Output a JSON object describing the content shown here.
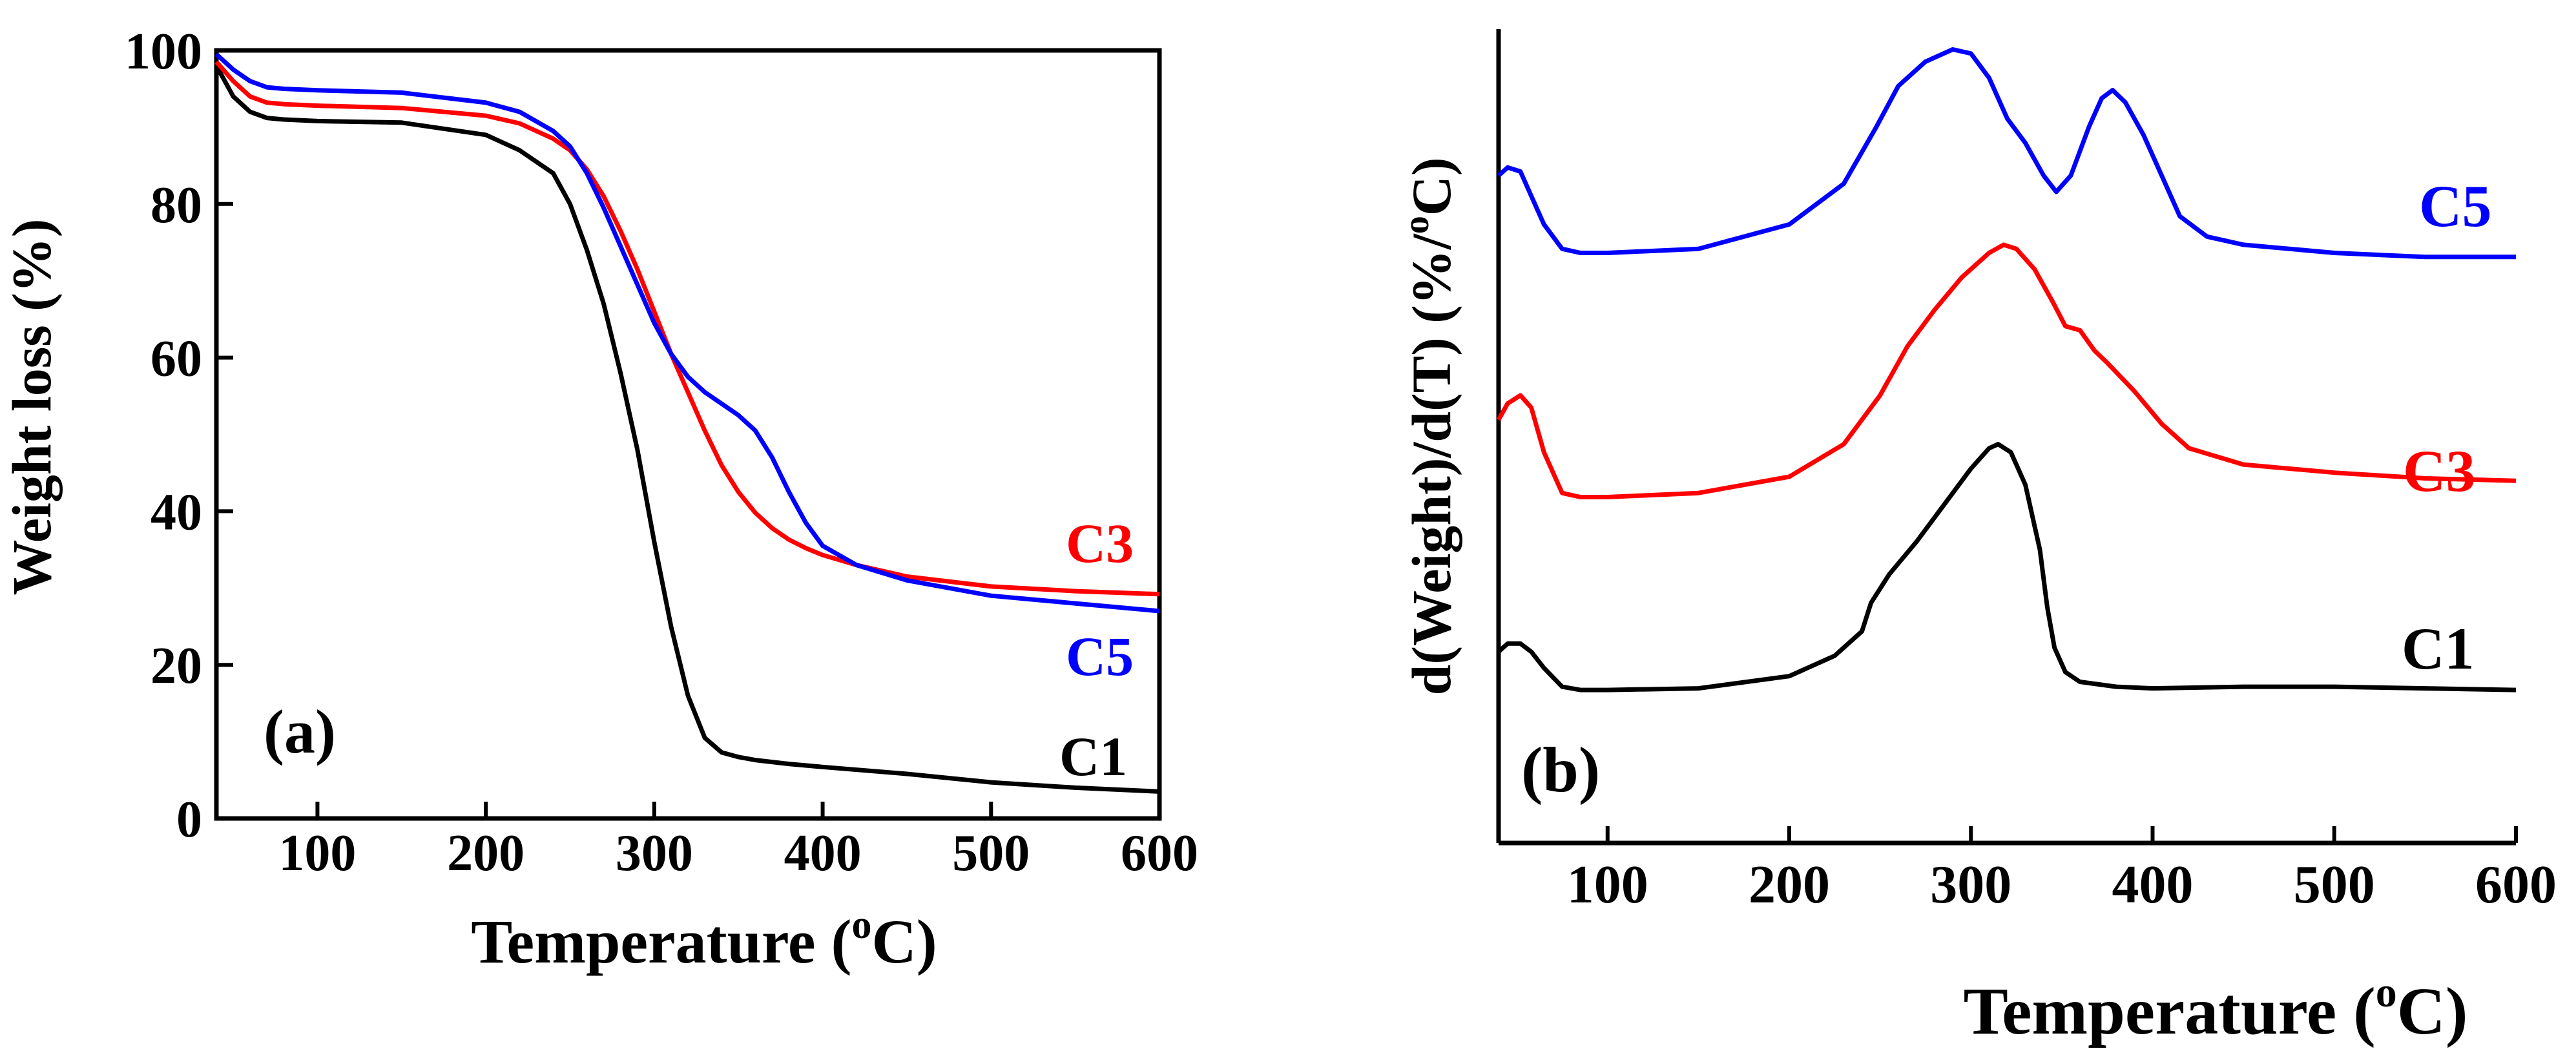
{
  "colors": {
    "C1": "#000000",
    "C3": "#ff0000",
    "C5": "#0000ff",
    "axis": "#000000"
  },
  "chart_data": [
    {
      "panel": "a",
      "type": "line",
      "title": "",
      "panel_label": "(a)",
      "xlabel_main": "Temperature (",
      "xlabel_sup": "o",
      "xlabel_tail": "C)",
      "ylabel": "Weight loss (%)",
      "xlim": [
        40,
        600
      ],
      "ylim": [
        0,
        100
      ],
      "xticks": [
        100,
        200,
        300,
        400,
        500,
        600
      ],
      "yticks": [
        0,
        20,
        40,
        60,
        80,
        100
      ],
      "xtick_labels": [
        "100",
        "200",
        "300",
        "400",
        "500",
        "600"
      ],
      "ytick_labels": [
        "0",
        "20",
        "40",
        "60",
        "80",
        "100"
      ],
      "series": [
        {
          "name": "C1",
          "label": "C1",
          "color": "#000000",
          "x": [
            40,
            50,
            60,
            70,
            80,
            100,
            150,
            200,
            220,
            240,
            250,
            260,
            270,
            280,
            290,
            300,
            310,
            320,
            330,
            340,
            350,
            360,
            380,
            400,
            450,
            500,
            550,
            600
          ],
          "y": [
            98,
            94,
            92,
            91.2,
            91,
            90.8,
            90.6,
            89,
            87,
            84,
            80,
            74,
            67,
            58,
            48,
            36,
            25,
            16,
            10.5,
            8.6,
            8,
            7.6,
            7.1,
            6.7,
            5.8,
            4.7,
            4,
            3.5
          ]
        },
        {
          "name": "C3",
          "label": "C3",
          "color": "#ff0000",
          "x": [
            40,
            50,
            60,
            70,
            80,
            100,
            150,
            200,
            220,
            240,
            250,
            260,
            270,
            280,
            290,
            300,
            310,
            320,
            330,
            340,
            350,
            360,
            370,
            380,
            390,
            400,
            420,
            450,
            500,
            550,
            600
          ],
          "y": [
            98.5,
            96,
            94,
            93.2,
            93,
            92.8,
            92.5,
            91.5,
            90.5,
            88.5,
            87,
            84.5,
            81,
            76.5,
            71.5,
            66,
            60.5,
            55.5,
            50.5,
            46,
            42.5,
            39.8,
            37.8,
            36.3,
            35.2,
            34.3,
            33,
            31.5,
            30.2,
            29.6,
            29.2
          ]
        },
        {
          "name": "C5",
          "label": "C5",
          "color": "#0000ff",
          "x": [
            40,
            50,
            60,
            70,
            80,
            100,
            150,
            200,
            220,
            240,
            250,
            260,
            270,
            280,
            290,
            300,
            310,
            320,
            330,
            340,
            350,
            360,
            370,
            380,
            390,
            400,
            420,
            450,
            500,
            550,
            600
          ],
          "y": [
            99.5,
            97.5,
            96,
            95.2,
            95,
            94.8,
            94.5,
            93.2,
            92,
            89.5,
            87.5,
            84,
            79.5,
            74.5,
            69.5,
            64.5,
            60.5,
            57.5,
            55.5,
            54,
            52.5,
            50.5,
            47,
            42.5,
            38.5,
            35.5,
            33,
            31,
            29,
            28,
            27
          ]
        }
      ]
    },
    {
      "panel": "b",
      "type": "line",
      "title": "",
      "panel_label": "(b)",
      "xlabel_main": "Temperature (",
      "xlabel_sup": "o",
      "xlabel_tail": "C)",
      "ylabel_main": "d(Weight)/d(T) (%/",
      "ylabel_sup": "o",
      "ylabel_tail": "C)",
      "xlim": [
        40,
        600
      ],
      "ylim": [
        0,
        100
      ],
      "xticks": [
        100,
        200,
        300,
        400,
        500,
        600
      ],
      "xtick_labels": [
        "100",
        "200",
        "300",
        "400",
        "500",
        "600"
      ],
      "yticks": [],
      "series": [
        {
          "name": "C1",
          "label": "C1",
          "color": "#000000",
          "x": [
            40,
            45,
            52,
            58,
            65,
            75,
            85,
            100,
            150,
            200,
            225,
            240,
            245,
            255,
            270,
            285,
            300,
            310,
            315,
            322,
            330,
            338,
            342,
            346,
            352,
            360,
            380,
            400,
            450,
            500,
            550,
            600
          ],
          "y": [
            23.5,
            24.5,
            24.5,
            23.5,
            21.5,
            19.2,
            18.8,
            18.8,
            19,
            20.5,
            23,
            26,
            29.5,
            33,
            37,
            41.5,
            46,
            48.5,
            49,
            48,
            44,
            36,
            29,
            24,
            21,
            19.8,
            19.2,
            19,
            19.2,
            19.2,
            19,
            18.8
          ]
        },
        {
          "name": "C3",
          "label": "C3",
          "color": "#ff0000",
          "x": [
            40,
            45,
            52,
            58,
            65,
            75,
            85,
            100,
            150,
            200,
            230,
            250,
            265,
            280,
            295,
            310,
            318,
            325,
            335,
            345,
            352,
            360,
            368,
            375,
            390,
            405,
            420,
            450,
            500,
            550,
            600
          ],
          "y": [
            52,
            54,
            55,
            53.5,
            48,
            43,
            42.5,
            42.5,
            43,
            45,
            49,
            55,
            61,
            65.5,
            69.5,
            72.5,
            73.5,
            73,
            70.5,
            66.5,
            63.5,
            63,
            60.5,
            59,
            55.5,
            51.5,
            48.5,
            46.5,
            45.5,
            44.8,
            44.5
          ]
        },
        {
          "name": "C5",
          "label": "C5",
          "color": "#0000ff",
          "x": [
            40,
            45,
            52,
            58,
            65,
            75,
            85,
            100,
            150,
            200,
            230,
            248,
            260,
            275,
            290,
            300,
            310,
            320,
            330,
            340,
            347,
            355,
            365,
            372,
            378,
            385,
            395,
            405,
            415,
            430,
            450,
            500,
            550,
            600
          ],
          "y": [
            82,
            83,
            82.5,
            79.5,
            76,
            73,
            72.5,
            72.5,
            73,
            76,
            81,
            88,
            93,
            96,
            97.5,
            97,
            94,
            89,
            86,
            82,
            80,
            82,
            88,
            91.5,
            92.5,
            91,
            87,
            82,
            77,
            74.5,
            73.5,
            72.5,
            72,
            72
          ]
        }
      ]
    }
  ]
}
